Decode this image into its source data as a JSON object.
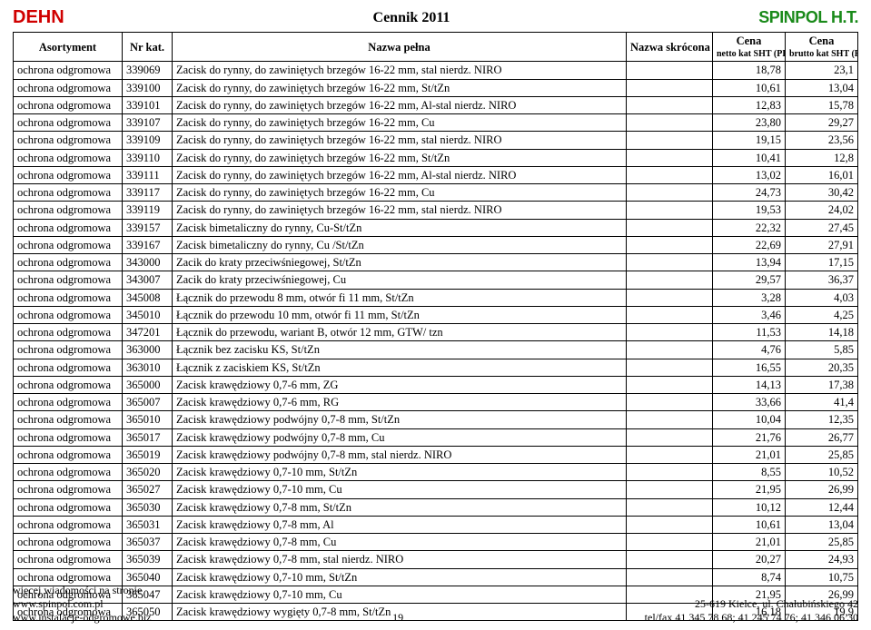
{
  "header": {
    "brand_left": "DEHN",
    "title": "Cennik 2011",
    "brand_right": "SPINPOL H.T."
  },
  "columns": {
    "asortyment": "Asortyment",
    "nr_kat": "Nr kat.",
    "nazwa_pelna": "Nazwa pełna",
    "nazwa_skrocona": "Nazwa skrócona",
    "cena_netto": "Cena",
    "cena_netto_sub": "netto kat SHT (PLN)",
    "cena_brutto": "Cena",
    "cena_brutto_sub": "brutto kat SHT (PLN)"
  },
  "rows": [
    {
      "a": "ochrona odgromowa",
      "n": "339069",
      "p": "Zacisk do rynny, do zawiniętych brzegów 16-22 mm, stal nierdz. NIRO",
      "s": "",
      "c1": "18,78",
      "c2": "23,1"
    },
    {
      "a": "ochrona odgromowa",
      "n": "339100",
      "p": "Zacisk do rynny, do zawiniętych brzegów 16-22 mm, St/tZn",
      "s": "",
      "c1": "10,61",
      "c2": "13,04"
    },
    {
      "a": "ochrona odgromowa",
      "n": "339101",
      "p": "Zacisk do rynny, do zawiniętych brzegów 16-22 mm, Al-stal nierdz. NIRO",
      "s": "",
      "c1": "12,83",
      "c2": "15,78"
    },
    {
      "a": "ochrona odgromowa",
      "n": "339107",
      "p": "Zacisk do rynny, do zawiniętych brzegów 16-22 mm, Cu",
      "s": "",
      "c1": "23,80",
      "c2": "29,27"
    },
    {
      "a": "ochrona odgromowa",
      "n": "339109",
      "p": "Zacisk do rynny, do zawiniętych brzegów 16-22 mm, stal nierdz. NIRO",
      "s": "",
      "c1": "19,15",
      "c2": "23,56"
    },
    {
      "a": "ochrona odgromowa",
      "n": "339110",
      "p": "Zacisk do rynny, do zawiniętych brzegów 16-22 mm, St/tZn",
      "s": "",
      "c1": "10,41",
      "c2": "12,8"
    },
    {
      "a": "ochrona odgromowa",
      "n": "339111",
      "p": "Zacisk do rynny, do zawiniętych brzegów 16-22 mm, Al-stal nierdz. NIRO",
      "s": "",
      "c1": "13,02",
      "c2": "16,01"
    },
    {
      "a": "ochrona odgromowa",
      "n": "339117",
      "p": "Zacisk do rynny, do zawiniętych brzegów 16-22 mm, Cu",
      "s": "",
      "c1": "24,73",
      "c2": "30,42"
    },
    {
      "a": "ochrona odgromowa",
      "n": "339119",
      "p": "Zacisk do rynny, do zawiniętych brzegów 16-22 mm, stal nierdz. NIRO",
      "s": "",
      "c1": "19,53",
      "c2": "24,02"
    },
    {
      "a": "ochrona odgromowa",
      "n": "339157",
      "p": "Zacisk bimetaliczny do rynny, Cu-St/tZn",
      "s": "",
      "c1": "22,32",
      "c2": "27,45"
    },
    {
      "a": "ochrona odgromowa",
      "n": "339167",
      "p": "Zacisk bimetaliczny do rynny, Cu /St/tZn",
      "s": "",
      "c1": "22,69",
      "c2": "27,91"
    },
    {
      "a": "ochrona odgromowa",
      "n": "343000",
      "p": "Zacik do kraty przeciwśniegowej, St/tZn",
      "s": "",
      "c1": "13,94",
      "c2": "17,15"
    },
    {
      "a": "ochrona odgromowa",
      "n": "343007",
      "p": "Zacik do kraty przeciwśniegowej, Cu",
      "s": "",
      "c1": "29,57",
      "c2": "36,37"
    },
    {
      "a": "ochrona odgromowa",
      "n": "345008",
      "p": "Łącznik do przewodu 8 mm, otwór fi 11 mm, St/tZn",
      "s": "",
      "c1": "3,28",
      "c2": "4,03"
    },
    {
      "a": "ochrona odgromowa",
      "n": "345010",
      "p": "Łącznik do przewodu 10 mm, otwór fi 11 mm, St/tZn",
      "s": "",
      "c1": "3,46",
      "c2": "4,25"
    },
    {
      "a": "ochrona odgromowa",
      "n": "347201",
      "p": "Łącznik do przewodu, wariant B, otwór 12 mm, GTW/ tzn",
      "s": "",
      "c1": "11,53",
      "c2": "14,18"
    },
    {
      "a": "ochrona odgromowa",
      "n": "363000",
      "p": "Łącznik bez zacisku KS, St/tZn",
      "s": "",
      "c1": "4,76",
      "c2": "5,85"
    },
    {
      "a": "ochrona odgromowa",
      "n": "363010",
      "p": "Łącznik z zaciskiem KS, St/tZn",
      "s": "",
      "c1": "16,55",
      "c2": "20,35"
    },
    {
      "a": "ochrona odgromowa",
      "n": "365000",
      "p": "Zacisk krawędziowy 0,7-6 mm, ZG",
      "s": "",
      "c1": "14,13",
      "c2": "17,38"
    },
    {
      "a": "ochrona odgromowa",
      "n": "365007",
      "p": "Zacisk krawędziowy 0,7-6 mm, RG",
      "s": "",
      "c1": "33,66",
      "c2": "41,4"
    },
    {
      "a": "ochrona odgromowa",
      "n": "365010",
      "p": "Zacisk krawędziowy podwójny 0,7-8 mm, St/tZn",
      "s": "",
      "c1": "10,04",
      "c2": "12,35"
    },
    {
      "a": "ochrona odgromowa",
      "n": "365017",
      "p": "Zacisk krawędziowy podwójny 0,7-8 mm, Cu",
      "s": "",
      "c1": "21,76",
      "c2": "26,77"
    },
    {
      "a": "ochrona odgromowa",
      "n": "365019",
      "p": "Zacisk krawędziowy podwójny 0,7-8 mm, stal nierdz. NIRO",
      "s": "",
      "c1": "21,01",
      "c2": "25,85"
    },
    {
      "a": "ochrona odgromowa",
      "n": "365020",
      "p": "Zacisk krawędziowy 0,7-10 mm, St/tZn",
      "s": "",
      "c1": "8,55",
      "c2": "10,52"
    },
    {
      "a": "ochrona odgromowa",
      "n": "365027",
      "p": "Zacisk krawędziowy 0,7-10 mm, Cu",
      "s": "",
      "c1": "21,95",
      "c2": "26,99"
    },
    {
      "a": "ochrona odgromowa",
      "n": "365030",
      "p": "Zacisk krawędziowy 0,7-8 mm, St/tZn",
      "s": "",
      "c1": "10,12",
      "c2": "12,44"
    },
    {
      "a": "ochrona odgromowa",
      "n": "365031",
      "p": "Zacisk krawędziowy 0,7-8 mm, Al",
      "s": "",
      "c1": "10,61",
      "c2": "13,04"
    },
    {
      "a": "ochrona odgromowa",
      "n": "365037",
      "p": "Zacisk krawędziowy 0,7-8 mm, Cu",
      "s": "",
      "c1": "21,01",
      "c2": "25,85"
    },
    {
      "a": "ochrona odgromowa",
      "n": "365039",
      "p": "Zacisk krawędziowy 0,7-8 mm, stal nierdz. NIRO",
      "s": "",
      "c1": "20,27",
      "c2": "24,93"
    },
    {
      "a": "ochrona odgromowa",
      "n": "365040",
      "p": "Zacisk krawędziowy 0,7-10 mm, St/tZn",
      "s": "",
      "c1": "8,74",
      "c2": "10,75"
    },
    {
      "a": "ochrona odgromowa",
      "n": "365047",
      "p": "Zacisk krawędziowy 0,7-10 mm, Cu",
      "s": "",
      "c1": "21,95",
      "c2": "26,99"
    },
    {
      "a": "ochrona odgromowa",
      "n": "365050",
      "p": "Zacisk krawędziowy wygięty 0,7-8 mm, St/tZn",
      "s": "",
      "c1": "16,18",
      "c2": "19,9"
    }
  ],
  "footer": {
    "left1": "więcej wiadomości na stronie",
    "left2": "www.spinpol.com.pl",
    "left3": "www.instalacje-odgromowe.biz",
    "page": "19",
    "right1": "25-619 Kielce, ul. Chałubińskiego 42",
    "right2": "tel/fax 41 345 78 68; 41 245 74 76; 41 346 06 30"
  },
  "style": {
    "brand_left_color": "#d00000",
    "brand_right_color": "#1a8a1a",
    "border_color": "#000000",
    "bg_color": "#ffffff",
    "font_family": "Times New Roman",
    "header_fontsize": 16,
    "body_fontsize": 12.5
  }
}
